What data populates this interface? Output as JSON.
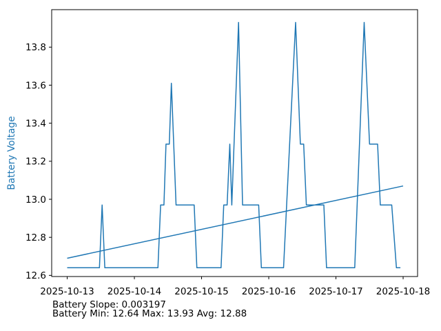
{
  "figure": {
    "background": "#ffffff",
    "annotations": {
      "slope_line": "Battery Slope: 0.003197",
      "stats_line": "Battery Min: 12.64 Max: 13.93 Avg: 12.88"
    }
  },
  "chart_data": {
    "type": "line",
    "title": "",
    "xlabel": "",
    "ylabel": "Battery Voltage",
    "ylabel_color": "#1f77b4",
    "line_color": "#1f77b4",
    "axis_color": "#000000",
    "tick_label_color": "#000000",
    "grid": false,
    "legend": "none",
    "x_tick_labels": [
      "2025-10-13",
      "2025-10-14",
      "2025-10-15",
      "2025-10-16",
      "2025-10-17",
      "2025-10-18"
    ],
    "x_tick_positions_days": [
      0,
      1,
      2,
      3,
      4,
      5
    ],
    "y_tick_labels": [
      "12.6",
      "12.8",
      "13.0",
      "13.2",
      "13.4",
      "13.6",
      "13.8"
    ],
    "y_tick_values": [
      12.6,
      12.8,
      13.0,
      13.2,
      13.4,
      13.6,
      13.8
    ],
    "xlim_days": [
      -0.231,
      5.215
    ],
    "ylim": [
      12.594,
      13.997
    ],
    "stats": {
      "slope_per_hour": 0.003197,
      "min": 12.64,
      "max": 13.93,
      "avg": 12.88
    },
    "series": [
      {
        "name": "battery-voltage",
        "points": [
          [
            0.0,
            12.64
          ],
          [
            0.48,
            12.64
          ],
          [
            0.52,
            12.97
          ],
          [
            0.56,
            12.64
          ],
          [
            1.35,
            12.64
          ],
          [
            1.39,
            12.97
          ],
          [
            1.44,
            12.97
          ],
          [
            1.47,
            13.29
          ],
          [
            1.52,
            13.29
          ],
          [
            1.55,
            13.61
          ],
          [
            1.62,
            12.97
          ],
          [
            1.89,
            12.97
          ],
          [
            1.93,
            12.64
          ],
          [
            2.29,
            12.64
          ],
          [
            2.33,
            12.97
          ],
          [
            2.38,
            12.97
          ],
          [
            2.42,
            13.29
          ],
          [
            2.45,
            12.97
          ],
          [
            2.55,
            13.93
          ],
          [
            2.61,
            12.97
          ],
          [
            2.85,
            12.97
          ],
          [
            2.89,
            12.64
          ],
          [
            3.22,
            12.64
          ],
          [
            3.4,
            13.93
          ],
          [
            3.47,
            13.29
          ],
          [
            3.52,
            13.29
          ],
          [
            3.56,
            12.97
          ],
          [
            3.82,
            12.97
          ],
          [
            3.86,
            12.64
          ],
          [
            4.28,
            12.64
          ],
          [
            4.42,
            13.93
          ],
          [
            4.5,
            13.29
          ],
          [
            4.62,
            13.29
          ],
          [
            4.66,
            12.97
          ],
          [
            4.83,
            12.97
          ],
          [
            4.9,
            12.64
          ],
          [
            4.96,
            12.64
          ]
        ]
      },
      {
        "name": "trend-line",
        "points": [
          [
            0.0,
            12.69
          ],
          [
            5.0,
            13.07
          ]
        ]
      }
    ]
  }
}
